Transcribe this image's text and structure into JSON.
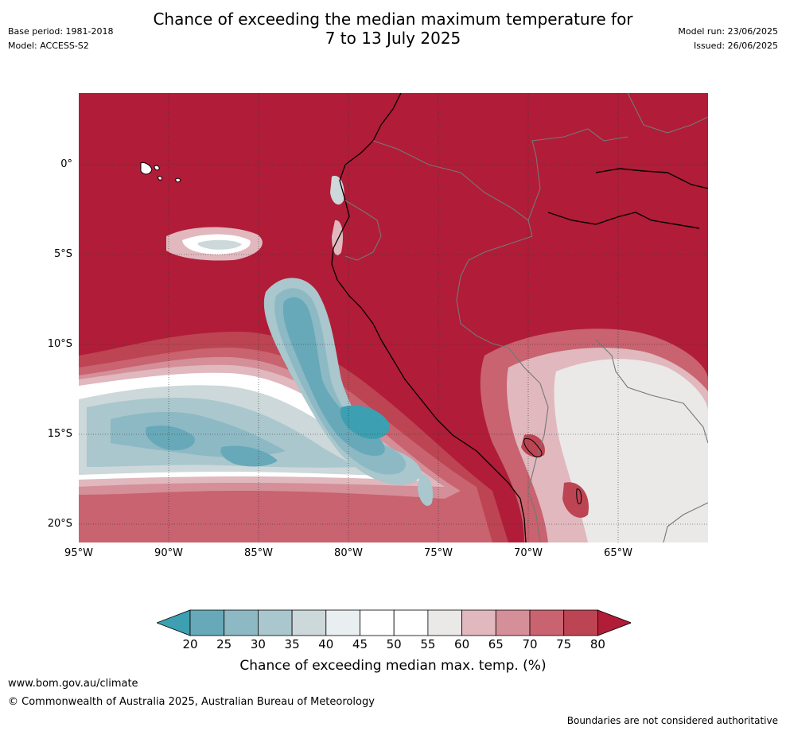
{
  "header": {
    "title_line1": "Chance of exceeding the median maximum temperature for",
    "title_line2": "7 to 13 July 2025",
    "base_period": "Base period: 1981-2018",
    "model": "Model: ACCESS-S2",
    "model_run": "Model run: 23/06/2025",
    "issued": "Issued: 26/06/2025"
  },
  "map": {
    "lat_labels": [
      "0°",
      "5°S",
      "10°S",
      "15°S",
      "20°S"
    ],
    "lon_labels": [
      "95°W",
      "90°W",
      "85°W",
      "80°W",
      "75°W",
      "70°W",
      "65°W"
    ],
    "lon_range": [
      -95,
      -60
    ],
    "lat_range": [
      -21,
      4
    ],
    "background_color": "#b11c38"
  },
  "colorbar": {
    "ticks": [
      "20",
      "25",
      "30",
      "35",
      "40",
      "45",
      "50",
      "55",
      "60",
      "65",
      "70",
      "75",
      "80"
    ],
    "colors": [
      "#3c9fb2",
      "#67a9b8",
      "#8db9c4",
      "#a9c7cc",
      "#ccd8da",
      "#e9eef0",
      "#ffffff",
      "#ffffff",
      "#ebe8e8",
      "#e0b8be",
      "#d48f99",
      "#c8636f",
      "#bd4452",
      "#b11c38"
    ],
    "label": "Chance of exceeding median max. temp. (%)"
  },
  "footer": {
    "url": "www.bom.gov.au/climate",
    "copyright": "© Commonwealth of Australia 2025, Australian Bureau of Meteorology",
    "disclaimer": "Boundaries are not considered authoritative"
  }
}
